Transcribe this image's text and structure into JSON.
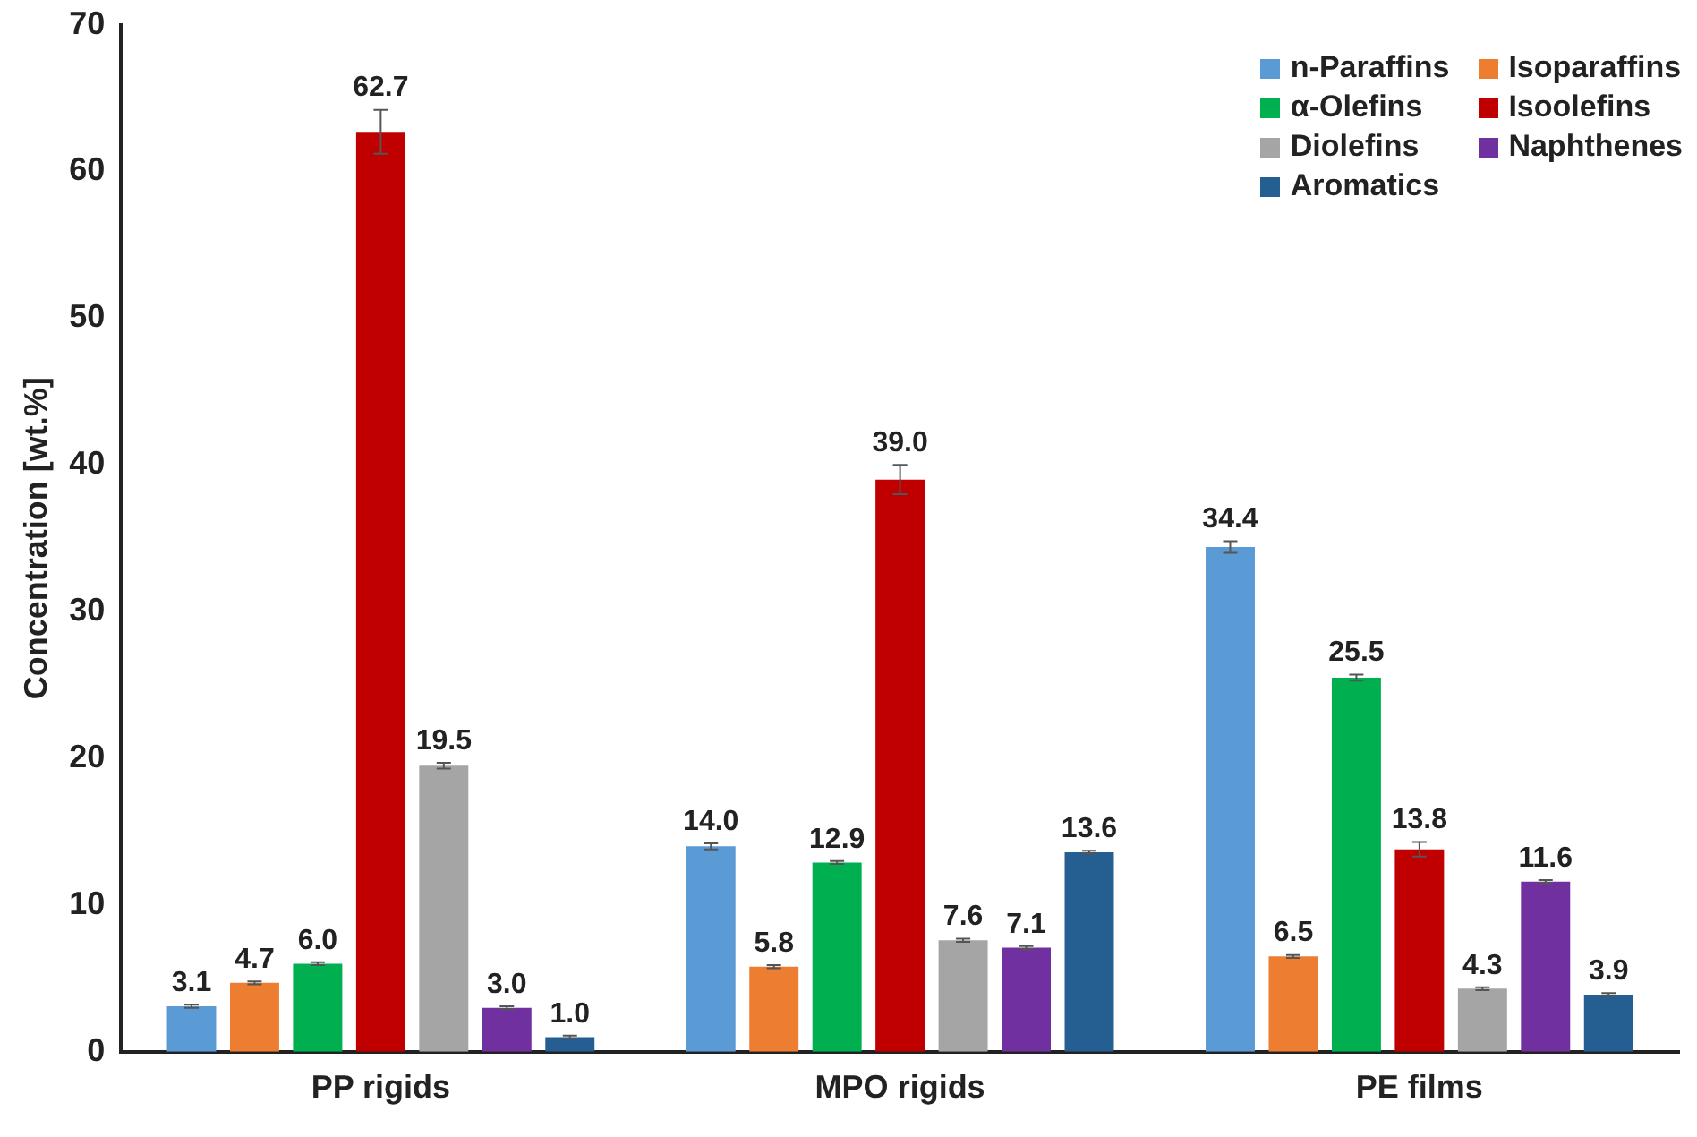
{
  "chart_data": {
    "type": "bar",
    "ylabel": "Concentration [wt.%]",
    "categories": [
      "PP rigids",
      "MPO rigids",
      "PE films"
    ],
    "series": [
      {
        "name": "n-Paraffins",
        "color": "#5b9bd5",
        "values": [
          3.1,
          14.0,
          34.4
        ],
        "value_labels": [
          "3.1",
          "14.0",
          "34.4"
        ],
        "errors": [
          0.1,
          0.2,
          0.4
        ]
      },
      {
        "name": "Isoparaffins",
        "color": "#ed7d31",
        "values": [
          4.7,
          5.8,
          6.5
        ],
        "value_labels": [
          "4.7",
          "5.8",
          "6.5"
        ],
        "errors": [
          0.1,
          0.1,
          0.1
        ]
      },
      {
        "name": "α-Olefins",
        "color": "#00b050",
        "values": [
          6.0,
          12.9,
          25.5
        ],
        "value_labels": [
          "6.0",
          "12.9",
          "25.5"
        ],
        "errors": [
          0.1,
          0.1,
          0.2
        ]
      },
      {
        "name": "Isoolefins",
        "color": "#c00000",
        "values": [
          62.7,
          39.0,
          13.8
        ],
        "value_labels": [
          "62.7",
          "39.0",
          "13.8"
        ],
        "errors": [
          1.5,
          1.0,
          0.5
        ]
      },
      {
        "name": "Diolefins",
        "color": "#a5a5a5",
        "values": [
          19.5,
          7.6,
          4.3
        ],
        "value_labels": [
          "19.5",
          "7.6",
          "4.3"
        ],
        "errors": [
          0.2,
          0.1,
          0.1
        ]
      },
      {
        "name": "Naphthenes",
        "color": "#7030a0",
        "values": [
          3.0,
          7.1,
          11.6
        ],
        "value_labels": [
          "3.0",
          "7.1",
          "11.6"
        ],
        "errors": [
          0.1,
          0.1,
          0.1
        ]
      },
      {
        "name": "Aromatics",
        "color": "#255e91",
        "values": [
          1.0,
          13.6,
          3.9
        ],
        "value_labels": [
          "1.0",
          "13.6",
          "3.9"
        ],
        "errors": [
          0.1,
          0.1,
          0.1
        ]
      }
    ],
    "ylim": [
      0,
      70
    ],
    "yticks": [
      0,
      10,
      20,
      30,
      40,
      50,
      60,
      70
    ],
    "grid": false,
    "legend": "top right"
  }
}
